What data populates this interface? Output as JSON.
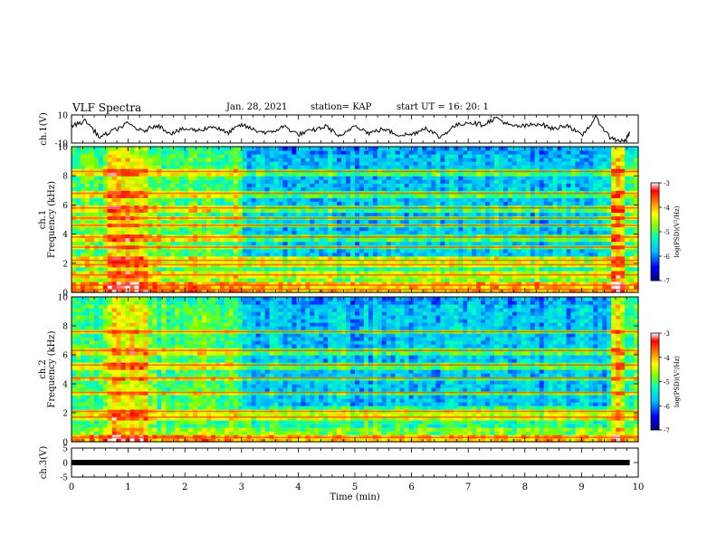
{
  "header": {
    "title": "VLF Spectra",
    "date": "Jan. 28, 2021",
    "station": "station= KAP",
    "start": "start  UT =   16: 20: 1"
  },
  "chart_data": [
    {
      "type": "line",
      "panel": "ch1-waveform",
      "ylabel": "ch.1(V)",
      "ylim": [
        -10,
        10
      ],
      "yticks": [
        "10",
        "-10"
      ],
      "xlim": [
        0,
        10
      ],
      "x_min": [
        0,
        0.25,
        0.5,
        0.75,
        1.0,
        1.25,
        1.5,
        1.75,
        2.0,
        2.25,
        2.5,
        2.75,
        3.0,
        3.25,
        3.5,
        3.75,
        4.0,
        4.25,
        4.5,
        4.75,
        5.0,
        5.25,
        5.5,
        5.75,
        6.0,
        6.25,
        6.5,
        6.75,
        7.0,
        7.25,
        7.5,
        7.75,
        8.0,
        8.25,
        8.5,
        8.75,
        9.0,
        9.25,
        9.5,
        9.75,
        9.85
      ],
      "values": [
        2,
        6,
        -6,
        -1,
        4,
        -2,
        3,
        -3,
        0,
        -1,
        2,
        -3,
        3,
        -1,
        -3,
        2,
        -4,
        -1,
        2,
        -6,
        3,
        -3,
        0,
        -4,
        -4,
        1,
        -6,
        2,
        5,
        3,
        8,
        2,
        2,
        4,
        0,
        3,
        -5,
        8,
        -6,
        -9,
        -3
      ]
    },
    {
      "type": "heatmap",
      "panel": "ch1-spectrogram",
      "ylabel": "ch.1",
      "ylabel2": "Frequency  (kHz)",
      "ylim": [
        0,
        10
      ],
      "yticks": [
        "0",
        "2",
        "4",
        "6",
        "8",
        "10"
      ],
      "xlim": [
        0,
        10
      ],
      "colorbar": {
        "label": "log(PSD)(V²/Hz)",
        "range": [
          -7,
          -3
        ],
        "ticks": [
          "-3",
          "-4",
          "-5",
          "-6",
          "-7"
        ]
      },
      "bright_bands_kHz": [
        0.2,
        0.5,
        1.2,
        1.9,
        2.2,
        3.1,
        3.8,
        4.6,
        5.1,
        5.8,
        6.8,
        8.3
      ],
      "high_intensity_intervals_min": [
        [
          0.65,
          1.35
        ],
        [
          9.55,
          9.8
        ]
      ],
      "low_intensity_intervals_min": [
        [
          3.0,
          9.5
        ]
      ]
    },
    {
      "type": "heatmap",
      "panel": "ch2-spectrogram",
      "ylabel": "ch.2",
      "ylabel2": "Frequency  (kHz)",
      "ylim": [
        0,
        10
      ],
      "yticks": [
        "0",
        "2",
        "4",
        "6",
        "8",
        "10"
      ],
      "xlim": [
        0,
        10
      ],
      "colorbar": {
        "label": "log(PSD)(V²/Hz)",
        "range": [
          -7,
          -3
        ],
        "ticks": [
          "-3",
          "-4",
          "-5",
          "-6",
          "-7"
        ]
      },
      "bright_bands_kHz": [
        0.3,
        1.7,
        2.1,
        3.4,
        4.4,
        5.3,
        6.3,
        7.6
      ],
      "high_intensity_intervals_min": [
        [
          0.65,
          1.35
        ],
        [
          9.55,
          9.8
        ]
      ],
      "low_intensity_intervals_min": [
        [
          3.0,
          9.5
        ]
      ]
    },
    {
      "type": "line",
      "panel": "ch3-waveform",
      "ylabel": "ch.3(V)",
      "ylim": [
        -5,
        5
      ],
      "yticks": [
        "5",
        "0",
        "-5"
      ],
      "xlim": [
        0,
        10
      ],
      "x_min": [
        0,
        9.85
      ],
      "values": [
        0,
        0
      ]
    }
  ],
  "xaxis": {
    "label": "Time  (min)",
    "ticks": [
      "0",
      "1",
      "2",
      "3",
      "4",
      "5",
      "6",
      "7",
      "8",
      "9",
      "10"
    ]
  },
  "colors": {
    "map": [
      "#00007f",
      "#0000ff",
      "#00bfff",
      "#00ffbf",
      "#7fff00",
      "#ffff00",
      "#ff7f00",
      "#ff0000",
      "#ffffff"
    ]
  }
}
